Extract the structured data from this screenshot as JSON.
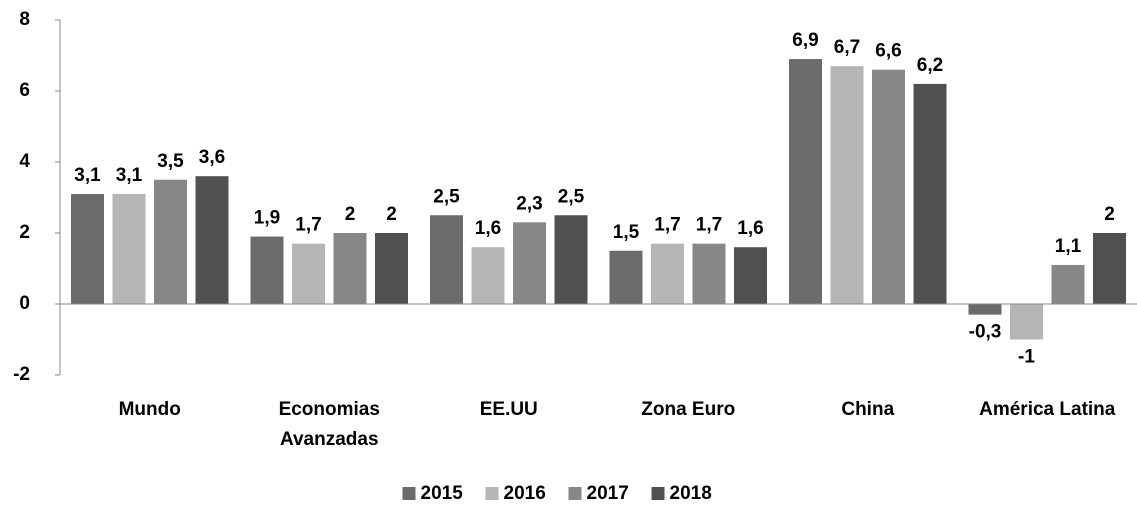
{
  "chart_data": {
    "type": "bar",
    "categories": [
      "Mundo",
      "Economias Avanzadas",
      "EE.UU",
      "Zona Euro",
      "China",
      "América Latina"
    ],
    "series": [
      {
        "name": "2015",
        "color": "#6b6b6b",
        "values": [
          3.1,
          1.9,
          2.5,
          1.5,
          6.9,
          -0.3
        ],
        "value_labels": [
          "3,1",
          "1,9",
          "2,5",
          "1,5",
          "6,9",
          "-0,3"
        ]
      },
      {
        "name": "2016",
        "color": "#b5b5b5",
        "values": [
          3.1,
          1.7,
          1.6,
          1.7,
          6.7,
          -1
        ],
        "value_labels": [
          "3,1",
          "1,7",
          "1,6",
          "1,7",
          "6,7",
          "-1"
        ]
      },
      {
        "name": "2017",
        "color": "#878787",
        "values": [
          3.5,
          2,
          2.3,
          1.7,
          6.6,
          1.1
        ],
        "value_labels": [
          "3,5",
          "2",
          "2,3",
          "1,7",
          "6,6",
          "1,1"
        ]
      },
      {
        "name": "2018",
        "color": "#505050",
        "values": [
          3.6,
          2,
          2.5,
          1.6,
          6.2,
          2
        ],
        "value_labels": [
          "3,6",
          "2",
          "2,5",
          "1,6",
          "6,2",
          "2"
        ]
      }
    ],
    "ylim": [
      -2,
      8
    ],
    "yticks": [
      -2,
      0,
      2,
      4,
      6,
      8
    ],
    "grid": false,
    "legend": "bottom"
  }
}
